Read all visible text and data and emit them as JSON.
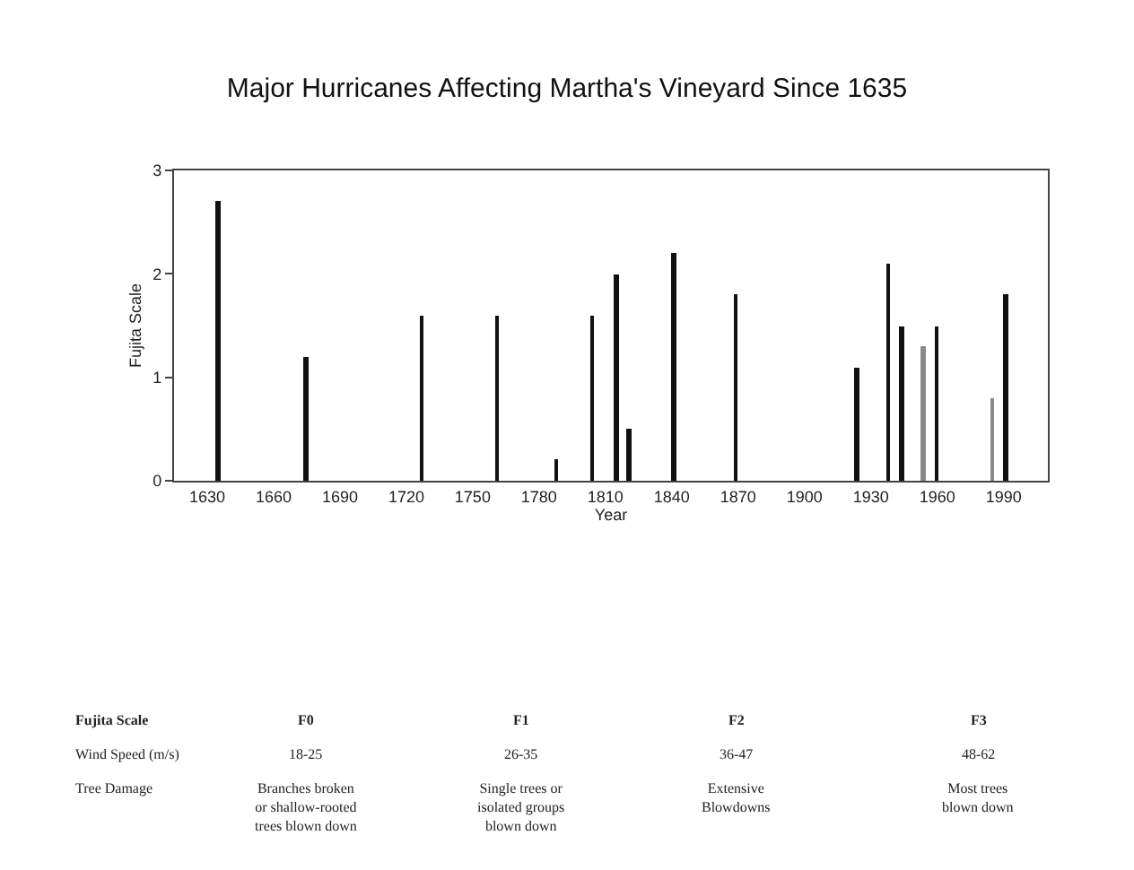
{
  "chart_data": {
    "type": "bar",
    "title": "Major Hurricanes Affecting Martha's Vineyard Since 1635",
    "xlabel": "Year",
    "ylabel": "Fujita Scale",
    "x": [
      1635,
      1675,
      1727,
      1761,
      1788,
      1804,
      1815,
      1821,
      1841,
      1869,
      1924,
      1938,
      1944,
      1954,
      1960,
      1985,
      1991
    ],
    "values": [
      2.7,
      1.2,
      1.6,
      1.6,
      0.2,
      1.6,
      2.0,
      0.5,
      2.2,
      1.8,
      1.1,
      2.1,
      1.5,
      1.3,
      1.5,
      0.8,
      1.8
    ],
    "colors": [
      "#111111",
      "#111111",
      "#111111",
      "#111111",
      "#111111",
      "#111111",
      "#111111",
      "#111111",
      "#111111",
      "#111111",
      "#111111",
      "#111111",
      "#111111",
      "#888888",
      "#111111",
      "#888888",
      "#111111"
    ],
    "xlim": [
      1615,
      2010
    ],
    "xticks": [
      1630,
      1660,
      1690,
      1720,
      1750,
      1780,
      1810,
      1840,
      1870,
      1900,
      1930,
      1960,
      1990
    ],
    "ylim": [
      0,
      3
    ],
    "yticks": [
      0,
      1,
      2,
      3
    ],
    "annotations": [
      "Fujita Scale",
      "F0",
      "F1",
      "F2",
      "F3",
      "Wind Speed (m/s)",
      "18-25",
      "26-35",
      "36-47",
      "48-62",
      "Tree Damage",
      "Branches broken\nor shallow-rooted\ntrees blown down",
      "Single trees or\nisolated groups\nblown down",
      "Extensive\nBlowdowns",
      "Most trees\nblown down"
    ]
  }
}
